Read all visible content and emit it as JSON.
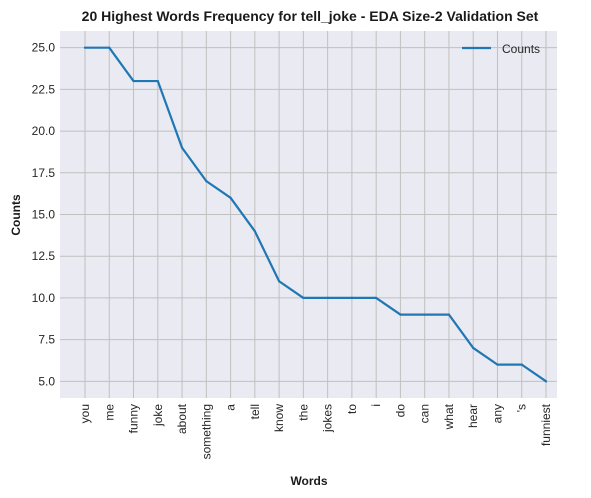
{
  "chart_data": {
    "type": "line",
    "title": "20 Highest Words Frequency for tell_joke - EDA Size-2 Validation Set",
    "xlabel": "Words",
    "ylabel": "Counts",
    "categories": [
      "you",
      "me",
      "funny",
      "joke",
      "about",
      "something",
      "a",
      "tell",
      "know",
      "the",
      "jokes",
      "to",
      "i",
      "do",
      "can",
      "what",
      "hear",
      "any",
      "'s",
      "funniest"
    ],
    "series": [
      {
        "name": "Counts",
        "values": [
          25,
          25,
          23,
          23,
          19,
          17,
          16,
          14,
          11,
          10,
          10,
          10,
          10,
          9,
          9,
          9,
          7,
          6,
          6,
          5
        ],
        "color": "#1f77b4"
      }
    ],
    "ylim": [
      4.0,
      26.0
    ],
    "yticks": [
      "5.0",
      "7.5",
      "10.0",
      "12.5",
      "15.0",
      "17.5",
      "20.0",
      "22.5",
      "25.0"
    ],
    "grid": true,
    "legend": "top-right",
    "colors": {
      "plot_background": "#eaeaf2",
      "grid": "#c0c0c0",
      "line": "#1f77b4"
    }
  }
}
